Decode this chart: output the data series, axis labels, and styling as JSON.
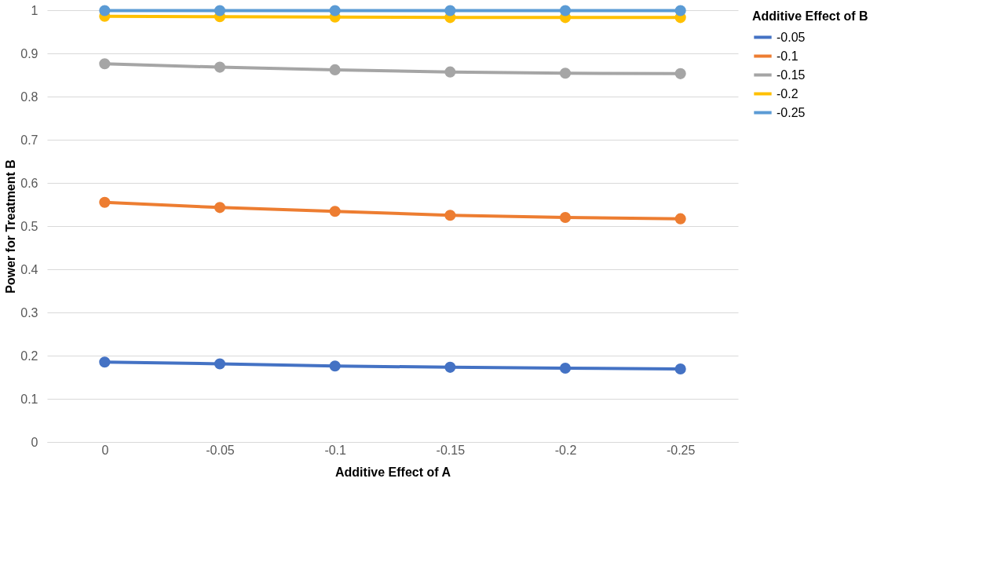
{
  "chart_data": {
    "type": "line",
    "xlabel": "Additive Effect of A",
    "ylabel": "Power for Treatment B",
    "legend_title": "Additive Effect of B",
    "categories": [
      "0",
      "-0.05",
      "-0.1",
      "-0.15",
      "-0.2",
      "-0.25"
    ],
    "series": [
      {
        "name": "-0.05",
        "color": "#4472c4",
        "values": [
          0.185,
          0.181,
          0.176,
          0.173,
          0.171,
          0.169
        ]
      },
      {
        "name": "-0.1",
        "color": "#ed7d31",
        "values": [
          0.555,
          0.543,
          0.534,
          0.525,
          0.52,
          0.517
        ]
      },
      {
        "name": "-0.15",
        "color": "#a5a5a5",
        "values": [
          0.876,
          0.868,
          0.862,
          0.857,
          0.854,
          0.853
        ]
      },
      {
        "name": "-0.2",
        "color": "#ffc000",
        "values": [
          0.986,
          0.985,
          0.984,
          0.983,
          0.983,
          0.983
        ]
      },
      {
        "name": "-0.25",
        "color": "#5b9bd5",
        "values": [
          0.999,
          0.999,
          0.999,
          0.999,
          0.999,
          0.999
        ]
      }
    ],
    "ylim": [
      0,
      1
    ],
    "yticks": [
      0,
      0.1,
      0.2,
      0.3,
      0.4,
      0.5,
      0.6,
      0.7,
      0.8,
      0.9,
      1
    ],
    "grid": "y",
    "legend": "right",
    "marker": "circle",
    "line_style": "solid"
  }
}
